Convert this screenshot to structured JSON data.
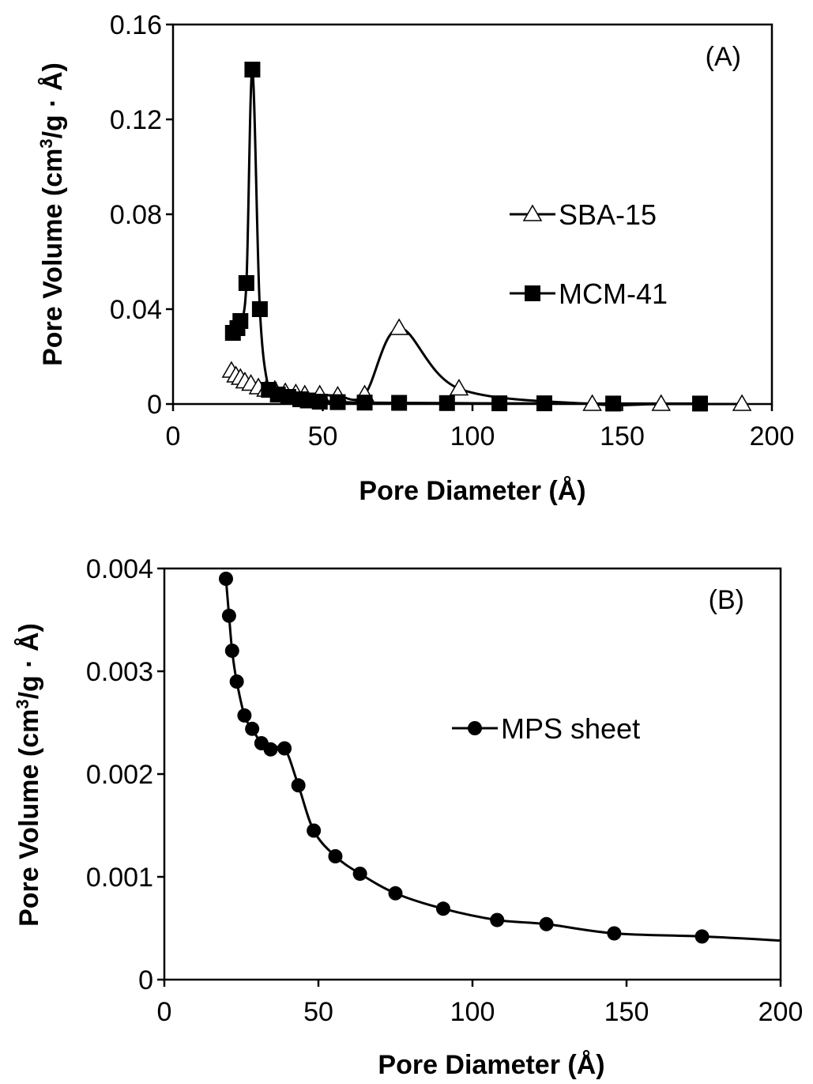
{
  "chart_data": [
    {
      "type": "line",
      "panel_label": "(A)",
      "xlabel": "Pore Diameter (Å)",
      "ylabel": "Pore Volume (cm³/g · Å)",
      "ylabel_parts": {
        "pre": "Pore Volume (cm",
        "sup": "3",
        "post": "/g · Å)"
      },
      "xlim": [
        0,
        200
      ],
      "ylim": [
        0,
        0.16
      ],
      "xticks": [
        "0",
        "50",
        "100",
        "150",
        "200"
      ],
      "yticks": [
        "0",
        "0.04",
        "0.08",
        "0.12",
        "0.16"
      ],
      "grid": false,
      "legend_position": "right-middle",
      "series": [
        {
          "name": "SBA-15",
          "marker": "open-triangle",
          "color": "#000000",
          "x": [
            19.5,
            21,
            22.5,
            24,
            26,
            28.5,
            31,
            34,
            37.5,
            41,
            44,
            49,
            55,
            64,
            75.5,
            95.5,
            140,
            163,
            190
          ],
          "y": [
            0.014,
            0.012,
            0.011,
            0.0095,
            0.0085,
            0.007,
            0.006,
            0.006,
            0.005,
            0.0045,
            0.004,
            0.004,
            0.0035,
            0.004,
            0.032,
            0.0065,
            0.0,
            0.0,
            0.0
          ]
        },
        {
          "name": "MCM-41",
          "marker": "filled-square",
          "color": "#000000",
          "x": [
            20,
            21.5,
            22.5,
            24.5,
            26.5,
            29,
            32,
            35,
            38.5,
            42.5,
            45,
            49,
            55,
            64,
            75.5,
            91.5,
            109,
            124,
            147,
            176
          ],
          "y": [
            0.03,
            0.032,
            0.035,
            0.051,
            0.141,
            0.04,
            0.006,
            0.004,
            0.003,
            0.002,
            0.0015,
            0.001,
            0.0008,
            0.0006,
            0.0005,
            0.0004,
            0.0003,
            0.0003,
            0.0002,
            0.0002
          ]
        }
      ]
    },
    {
      "type": "line",
      "panel_label": "(B)",
      "xlabel": "Pore Diameter (Å)",
      "ylabel": "Pore Volume (cm³/g · Å)",
      "ylabel_parts": {
        "pre": "Pore Volume (cm",
        "sup": "3",
        "post": "/g · Å)"
      },
      "xlim": [
        0,
        200
      ],
      "ylim": [
        0,
        0.004
      ],
      "xticks": [
        "0",
        "50",
        "100",
        "150",
        "200"
      ],
      "yticks": [
        "0",
        "0.001",
        "0.002",
        "0.003",
        "0.004"
      ],
      "grid": false,
      "legend_position": "right-upper",
      "series": [
        {
          "name": "MPS sheet",
          "marker": "filled-circle",
          "color": "#000000",
          "x": [
            20,
            21,
            22,
            23.5,
            26,
            28.5,
            31.5,
            34.5,
            39,
            43.5,
            48.5,
            55.5,
            63.5,
            75,
            90.5,
            108,
            124,
            146,
            174.5
          ],
          "y": [
            0.0039,
            0.00354,
            0.0032,
            0.0029,
            0.00257,
            0.00244,
            0.0023,
            0.00224,
            0.00225,
            0.00189,
            0.00145,
            0.0012,
            0.00103,
            0.00084,
            0.00069,
            0.00058,
            0.00054,
            0.00045,
            0.00042
          ],
          "curve_tail": {
            "x": 200,
            "y": 0.00038
          }
        }
      ]
    }
  ]
}
